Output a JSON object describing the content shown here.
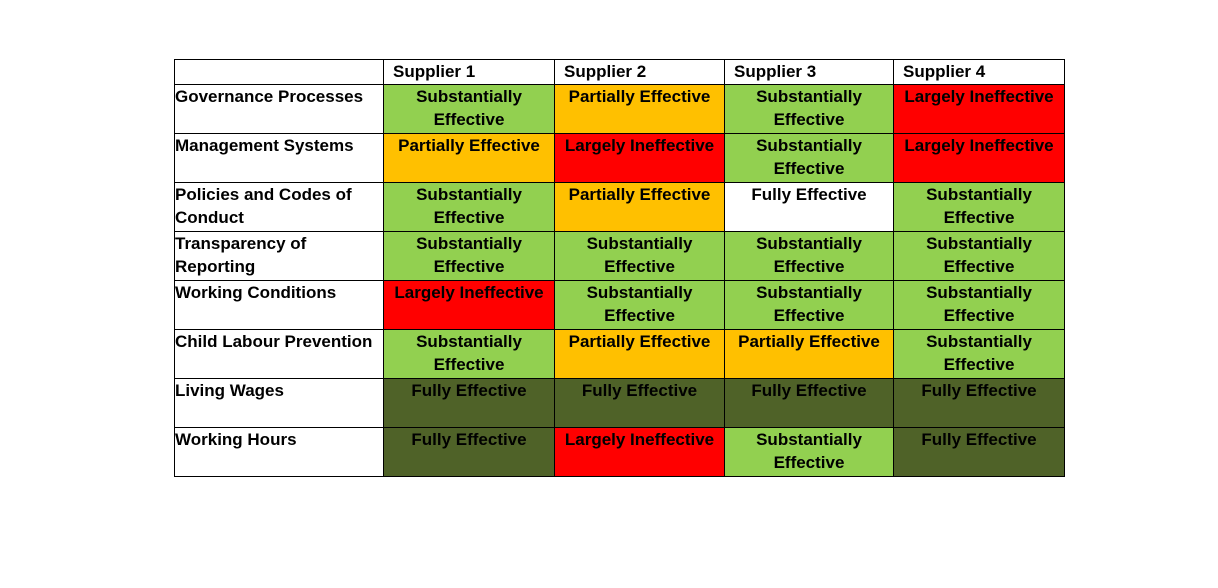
{
  "columns": [
    "",
    "Supplier 1",
    "Supplier 2",
    "Supplier 3",
    "Supplier 4"
  ],
  "rows": [
    {
      "label": "Governance Processes",
      "cells": [
        {
          "text": "Substantially Effective",
          "status": "substantial"
        },
        {
          "text": "Partially Effective",
          "status": "partial"
        },
        {
          "text": "Substantially Effective",
          "status": "substantial"
        },
        {
          "text": "Largely Ineffective",
          "status": "ineffective"
        }
      ]
    },
    {
      "label": "Management Systems",
      "cells": [
        {
          "text": "Partially Effective",
          "status": "partial"
        },
        {
          "text": "Largely Ineffective",
          "status": "ineffective"
        },
        {
          "text": "Substantially Effective",
          "status": "substantial"
        },
        {
          "text": "Largely Ineffective",
          "status": "ineffective"
        }
      ]
    },
    {
      "label": "Policies and Codes of Conduct",
      "cells": [
        {
          "text": "Substantially Effective",
          "status": "substantial"
        },
        {
          "text": "Partially Effective",
          "status": "partial"
        },
        {
          "text": "Fully Effective",
          "status": "full-white"
        },
        {
          "text": "Substantially Effective",
          "status": "substantial"
        }
      ]
    },
    {
      "label": "Transparency of Reporting",
      "cells": [
        {
          "text": "Substantially Effective",
          "status": "substantial"
        },
        {
          "text": "Substantially Effective",
          "status": "substantial"
        },
        {
          "text": "Substantially Effective",
          "status": "substantial"
        },
        {
          "text": "Substantially Effective",
          "status": "substantial"
        }
      ]
    },
    {
      "label": "Working Conditions",
      "cells": [
        {
          "text": "Largely Ineffective",
          "status": "ineffective"
        },
        {
          "text": "Substantially Effective",
          "status": "substantial"
        },
        {
          "text": "Substantially Effective",
          "status": "substantial"
        },
        {
          "text": "Substantially Effective",
          "status": "substantial"
        }
      ]
    },
    {
      "label": "Child Labour Prevention",
      "cells": [
        {
          "text": "Substantially Effective",
          "status": "substantial"
        },
        {
          "text": "Partially Effective",
          "status": "partial"
        },
        {
          "text": "Partially Effective",
          "status": "partial"
        },
        {
          "text": "Substantially Effective",
          "status": "substantial"
        }
      ]
    },
    {
      "label": "Living Wages",
      "cells": [
        {
          "text": "Fully Effective",
          "status": "full-dark"
        },
        {
          "text": "Fully Effective",
          "status": "full-dark"
        },
        {
          "text": "Fully Effective",
          "status": "full-dark"
        },
        {
          "text": "Fully Effective",
          "status": "full-dark"
        }
      ]
    },
    {
      "label": "Working Hours",
      "cells": [
        {
          "text": "Fully Effective",
          "status": "full-dark"
        },
        {
          "text": "Largely Ineffective",
          "status": "ineffective"
        },
        {
          "text": "Substantially Effective",
          "status": "substantial"
        },
        {
          "text": "Fully Effective",
          "status": "full-dark"
        }
      ]
    }
  ],
  "colors": {
    "substantial": "#92d050",
    "partial": "#ffc000",
    "ineffective": "#ff0000",
    "full-white": "#ffffff",
    "full-dark": "#4f6228"
  }
}
